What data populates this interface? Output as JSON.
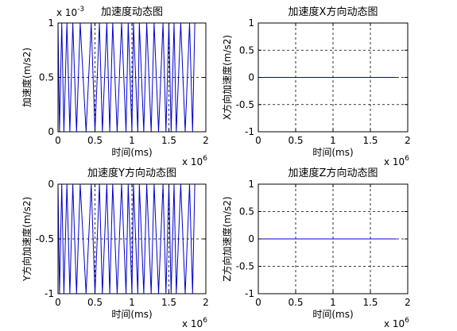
{
  "chart_data": [
    {
      "type": "line",
      "title": "加速度动态图",
      "xlabel": "时间(ms)",
      "ylabel": "加速度(m/s2)",
      "xlim": [
        0,
        2
      ],
      "ylim": [
        0,
        1
      ],
      "xticks": [
        "0",
        "0.5",
        "1",
        "1.5",
        "2"
      ],
      "yticks": [
        "0",
        "0.5",
        "1"
      ],
      "x_exponent_label": "x 10",
      "x_exponent": "6",
      "y_exponent_label": "x 10",
      "y_exponent": "-3",
      "grid": true,
      "line_color": "#0000cc",
      "series": [
        {
          "x": [
            0,
            0.02,
            0.05,
            0.08,
            0.12,
            0.16,
            0.2,
            0.25,
            0.3,
            0.38,
            0.45,
            0.5,
            0.56,
            0.6,
            0.66,
            0.7,
            0.74,
            0.8,
            0.86,
            0.92,
            0.95,
            1.0,
            1.02,
            1.08,
            1.1,
            1.16,
            1.2,
            1.26,
            1.3,
            1.36,
            1.42,
            1.46,
            1.5,
            1.53,
            1.57,
            1.6,
            1.66,
            1.72,
            1.78,
            1.82,
            1.85
          ],
          "y": [
            1,
            0,
            1,
            0,
            1,
            0,
            1,
            0,
            1,
            0,
            1,
            0,
            1,
            0,
            1,
            0,
            1,
            0,
            1,
            0,
            1,
            0,
            1,
            0,
            1,
            0,
            1,
            0,
            1,
            0,
            1,
            0,
            1,
            0,
            1,
            0,
            1,
            0,
            1,
            0,
            1
          ]
        }
      ]
    },
    {
      "type": "line",
      "title": "加速度X方向动态图",
      "xlabel": "时间(ms)",
      "ylabel": "X方向加速度(m/s2)",
      "xlim": [
        0,
        2
      ],
      "ylim": [
        -1,
        1
      ],
      "xticks": [
        "0",
        "0.5",
        "1",
        "1.5",
        "2"
      ],
      "yticks": [
        "-1",
        "-0.5",
        "0",
        "0.5",
        "1"
      ],
      "x_exponent_label": "x 10",
      "x_exponent": "6",
      "grid": true,
      "line_color": "#0000cc",
      "series": [
        {
          "x": [
            0,
            1.85
          ],
          "y": [
            0,
            0
          ]
        }
      ]
    },
    {
      "type": "line",
      "title": "加速度Y方向动态图",
      "xlabel": "时间(ms)",
      "ylabel": "Y方向加速度(m/s2)",
      "xlim": [
        0,
        2
      ],
      "ylim": [
        -1,
        0
      ],
      "xticks": [
        "0",
        "0.5",
        "1",
        "1.5",
        "2"
      ],
      "yticks": [
        "-1",
        "-0.5",
        "0"
      ],
      "x_exponent_label": "x 10",
      "x_exponent": "6",
      "grid": true,
      "line_color": "#0000cc",
      "series": [
        {
          "x": [
            0,
            0.02,
            0.05,
            0.08,
            0.12,
            0.16,
            0.2,
            0.25,
            0.3,
            0.38,
            0.45,
            0.5,
            0.56,
            0.6,
            0.66,
            0.7,
            0.74,
            0.8,
            0.86,
            0.92,
            0.95,
            1.0,
            1.02,
            1.08,
            1.1,
            1.16,
            1.2,
            1.26,
            1.3,
            1.36,
            1.42,
            1.46,
            1.5,
            1.53,
            1.57,
            1.6,
            1.66,
            1.72,
            1.78,
            1.82,
            1.85
          ],
          "y": [
            0,
            -1,
            0,
            -1,
            0,
            -1,
            0,
            -1,
            0,
            -1,
            0,
            -1,
            0,
            -1,
            0,
            -1,
            0,
            -1,
            0,
            -1,
            0,
            -1,
            0,
            -1,
            0,
            -1,
            0,
            -1,
            0,
            -1,
            0,
            -1,
            0,
            -1,
            0,
            -1,
            0,
            -1,
            0,
            -1,
            0
          ]
        }
      ]
    },
    {
      "type": "line",
      "title": "加速度Z方向动态图",
      "xlabel": "时间(ms)",
      "ylabel": "Z方向加速度(m/s2)",
      "xlim": [
        0,
        2
      ],
      "ylim": [
        -1,
        1
      ],
      "xticks": [
        "0",
        "0.5",
        "1",
        "1.5",
        "2"
      ],
      "yticks": [
        "-1",
        "-0.5",
        "0",
        "0.5",
        "1"
      ],
      "x_exponent_label": "x 10",
      "x_exponent": "6",
      "grid": true,
      "line_color": "#0000cc",
      "series": [
        {
          "x": [
            0,
            1.85
          ],
          "y": [
            0,
            0
          ]
        }
      ]
    }
  ]
}
